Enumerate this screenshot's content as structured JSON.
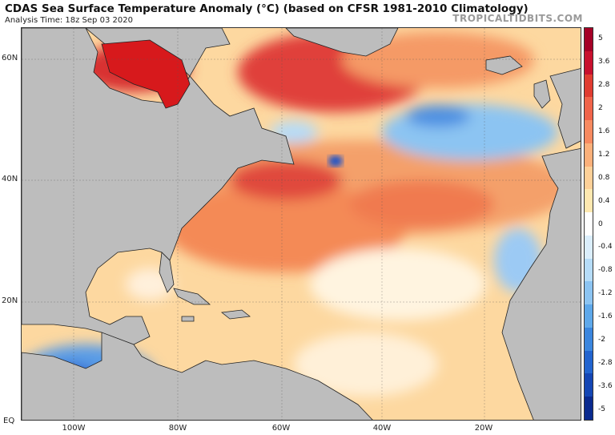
{
  "header": {
    "title": "CDAS Sea Surface Temperature Anomaly (°C) (based on CFSR 1981-2010 Climatology)",
    "subtitle": "Analysis Time: 18z Sep 03 2020",
    "brand": "TROPICALTIDBITS.COM"
  },
  "axes": {
    "lat_labels": [
      "60N",
      "40N",
      "20N",
      "EQ"
    ],
    "lon_labels": [
      "100W",
      "80W",
      "60W",
      "40W",
      "20W"
    ]
  },
  "colorbar": {
    "labels": [
      "5",
      "3.6",
      "2.8",
      "2",
      "1.6",
      "1.2",
      "0.8",
      "0.4",
      "0",
      "-0.4",
      "-0.8",
      "-1.2",
      "-1.6",
      "-2",
      "-2.8",
      "-3.6",
      "-5"
    ],
    "colors": [
      "#a50026",
      "#c8102e",
      "#e03c31",
      "#f0644a",
      "#f78a60",
      "#fbb07a",
      "#fdd098",
      "#fee8b0",
      "#ffffff",
      "#dbeefc",
      "#b6dcf8",
      "#8cc4f2",
      "#5ea8ea",
      "#3b86de",
      "#2264cf",
      "#1446b4",
      "#0a2a8f"
    ]
  },
  "map_colors": {
    "land": "#bdbdbd",
    "ocean_base": "#fdd8a0",
    "warm_strong": "#d7191c",
    "warm": "#f4834f",
    "cool": "#6aaef0",
    "cool_strong": "#1c52c8",
    "neutral": "#ffffff"
  }
}
